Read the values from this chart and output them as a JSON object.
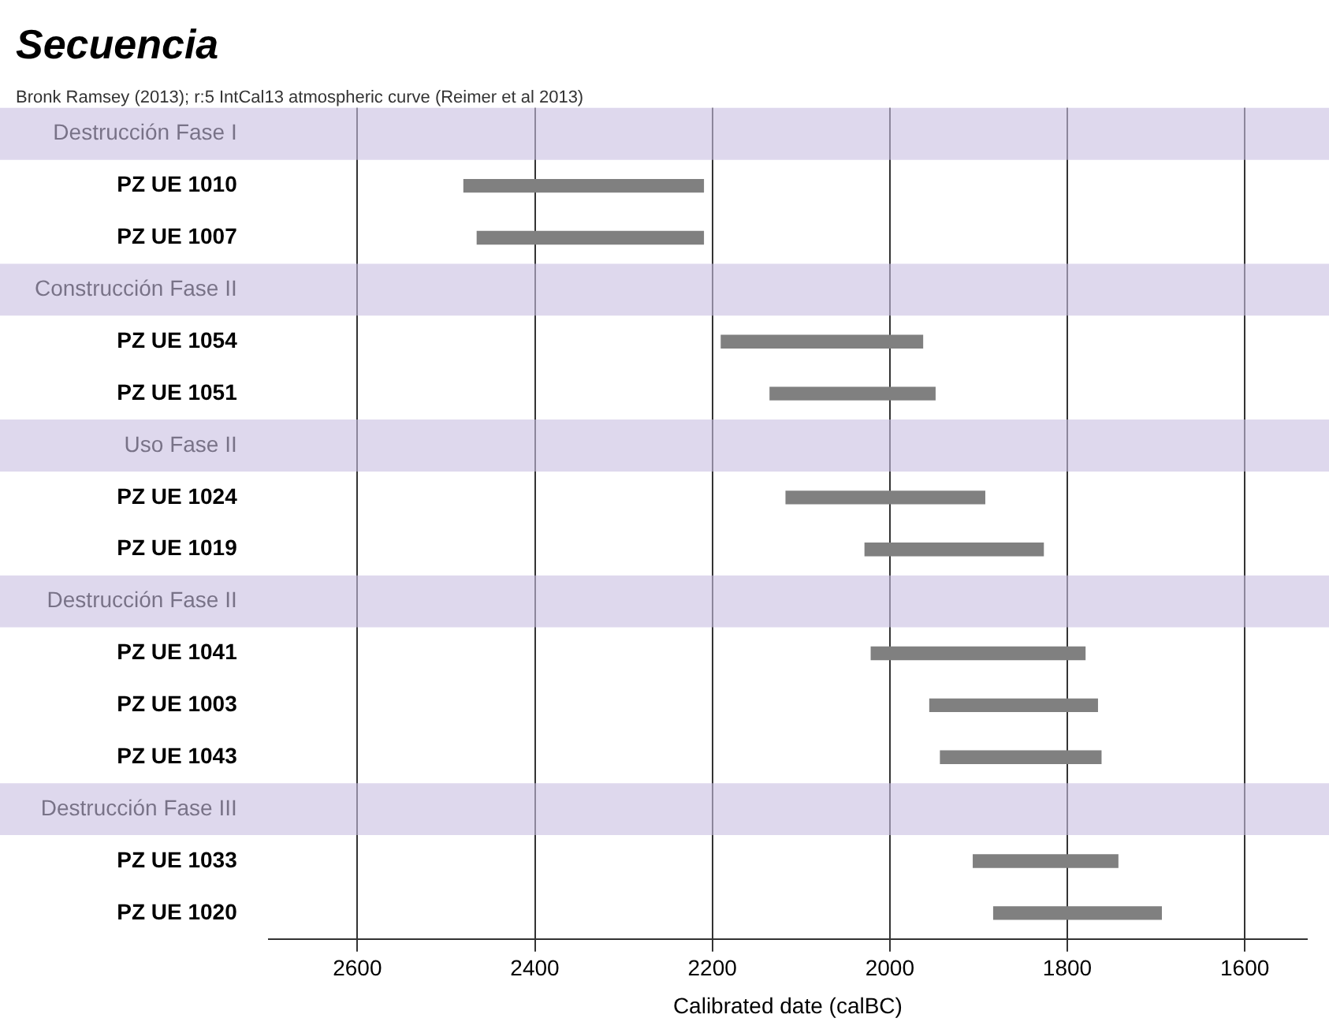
{
  "chart_data": {
    "type": "bar",
    "orientation": "horizontal",
    "title": "Secuencia",
    "subtitle": "Bronk Ramsey (2013); r:5 IntCal13 atmospheric curve (Reimer et al 2013)",
    "xlabel": "Calibrated date (calBC)",
    "categories": [
      "Destrucción Fase I",
      "PZ UE 1010",
      "PZ UE 1007",
      "Construcción Fase II",
      "PZ UE 1054",
      "PZ UE 1051",
      "Uso Fase II",
      "PZ UE 1024",
      "PZ UE 1019",
      "Destrucción Fase II",
      "PZ UE 1041",
      "PZ UE 1003",
      "PZ UE 1043",
      "Destrucción Fase III",
      "PZ UE 1033",
      "PZ UE 1020"
    ],
    "base": [
      null,
      2210,
      2210,
      null,
      1963,
      1949,
      null,
      1893,
      1827,
      null,
      1780,
      1766,
      1762,
      null,
      1743,
      1694
    ],
    "values": [
      null,
      270,
      255,
      null,
      227,
      186,
      null,
      224,
      201,
      null,
      241,
      189,
      181,
      null,
      163,
      189
    ],
    "color": "#808080",
    "xlim": [
      2700,
      1530
    ],
    "xticks": [
      2600,
      2400,
      2200,
      2000,
      1800,
      1600
    ],
    "grid": "x"
  }
}
